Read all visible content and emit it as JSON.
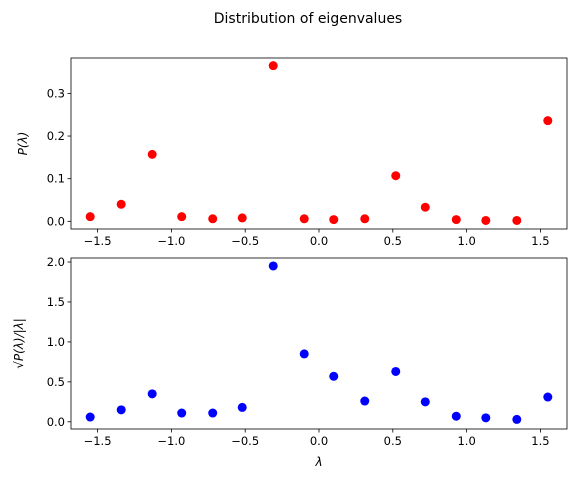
{
  "figure": {
    "title": "Distribution of eigenvalues"
  },
  "chart_data": [
    {
      "type": "scatter",
      "ylabel": "P(λ)",
      "xlabel": "",
      "color": "#ff0000",
      "xlim": [
        -1.68,
        1.68
      ],
      "ylim": [
        -0.018,
        0.383
      ],
      "xticks": [
        -1.5,
        -1.0,
        -0.5,
        0.0,
        0.5,
        1.0,
        1.5
      ],
      "xtick_labels": [
        "−1.5",
        "−1.0",
        "−0.5",
        "0.0",
        "0.5",
        "1.0",
        "1.5"
      ],
      "yticks": [
        0.0,
        0.1,
        0.2,
        0.3
      ],
      "ytick_labels": [
        "0.0",
        "0.1",
        "0.2",
        "0.3"
      ],
      "x": [
        -1.55,
        -1.34,
        -1.13,
        -0.93,
        -0.72,
        -0.52,
        -0.31,
        -0.1,
        0.1,
        0.31,
        0.52,
        0.72,
        0.93,
        1.13,
        1.34,
        1.55
      ],
      "y": [
        0.011,
        0.04,
        0.157,
        0.011,
        0.006,
        0.008,
        0.365,
        0.006,
        0.004,
        0.006,
        0.107,
        0.033,
        0.004,
        0.002,
        0.002,
        0.236
      ]
    },
    {
      "type": "scatter",
      "ylabel": "√P(λ)/|λ|",
      "xlabel": "λ",
      "color": "#0000ff",
      "xlim": [
        -1.68,
        1.68
      ],
      "ylim": [
        -0.09,
        2.05
      ],
      "xticks": [
        -1.5,
        -1.0,
        -0.5,
        0.0,
        0.5,
        1.0,
        1.5
      ],
      "xtick_labels": [
        "−1.5",
        "−1.0",
        "−0.5",
        "0.0",
        "0.5",
        "1.0",
        "1.5"
      ],
      "yticks": [
        0.0,
        0.5,
        1.0,
        1.5,
        2.0
      ],
      "ytick_labels": [
        "0.0",
        "0.5",
        "1.0",
        "1.5",
        "2.0"
      ],
      "x": [
        -1.55,
        -1.34,
        -1.13,
        -0.93,
        -0.72,
        -0.52,
        -0.31,
        -0.1,
        0.1,
        0.31,
        0.52,
        0.72,
        0.93,
        1.13,
        1.34,
        1.55
      ],
      "y": [
        0.06,
        0.15,
        0.35,
        0.11,
        0.11,
        0.18,
        1.95,
        0.85,
        0.57,
        0.26,
        0.63,
        0.25,
        0.07,
        0.05,
        0.03,
        0.31
      ]
    }
  ]
}
